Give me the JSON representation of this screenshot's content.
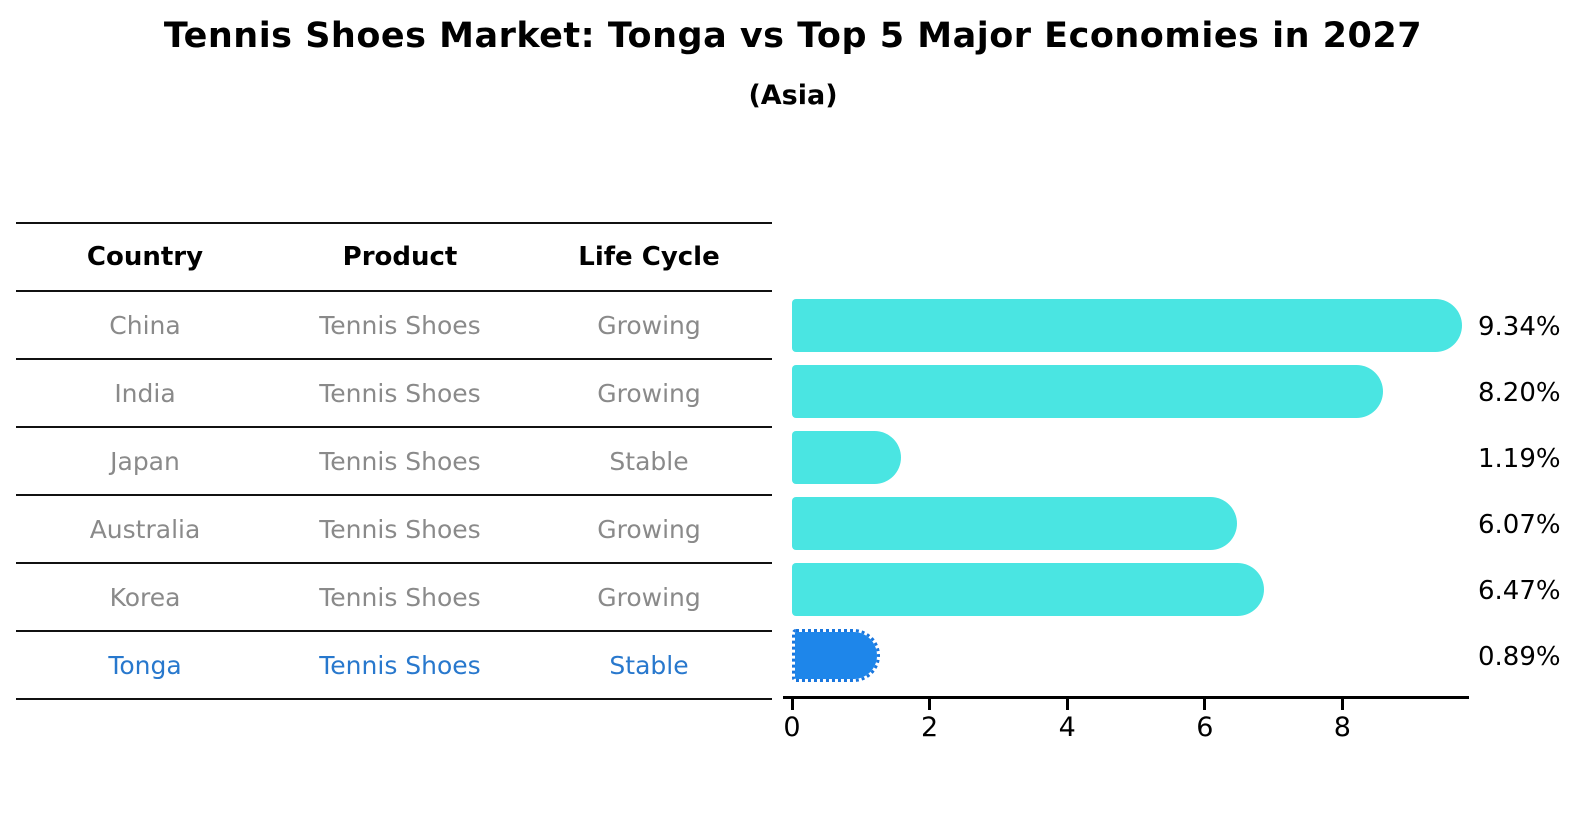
{
  "chart": {
    "title": "Tennis Shoes Market: Tonga vs Top 5 Major Economies in 2027",
    "subtitle": "(Asia)"
  },
  "table": {
    "headers": {
      "country": "Country",
      "product": "Product",
      "life_cycle": "Life Cycle"
    },
    "rows": [
      {
        "country": "China",
        "product": "Tennis Shoes",
        "life_cycle": "Growing"
      },
      {
        "country": "India",
        "product": "Tennis Shoes",
        "life_cycle": "Growing"
      },
      {
        "country": "Japan",
        "product": "Tennis Shoes",
        "life_cycle": "Stable"
      },
      {
        "country": "Australia",
        "product": "Tennis Shoes",
        "life_cycle": "Growing"
      },
      {
        "country": "Korea",
        "product": "Tennis Shoes",
        "life_cycle": "Growing"
      },
      {
        "country": "Tonga",
        "product": "Tennis Shoes",
        "life_cycle": "Stable"
      }
    ]
  },
  "chart_data": {
    "type": "bar",
    "orientation": "horizontal",
    "title": "Tennis Shoes Market: Tonga vs Top 5 Major Economies in 2027",
    "subtitle": "(Asia)",
    "categories": [
      "China",
      "India",
      "Japan",
      "Australia",
      "Korea",
      "Tonga"
    ],
    "values": [
      9.34,
      8.2,
      1.19,
      6.07,
      6.47,
      0.89
    ],
    "value_labels": [
      "9.34%",
      "8.20%",
      "1.19%",
      "6.07%",
      "6.47%",
      "0.89%"
    ],
    "xticks": [
      0,
      2,
      4,
      6,
      8
    ],
    "xlim": [
      0,
      9.8
    ],
    "grid": false,
    "legend": false,
    "bar_color": "#4ae5e2",
    "highlight_index": 5,
    "highlight_bar_color": "#1e86ea",
    "highlight_text_color": "#2878cd"
  }
}
